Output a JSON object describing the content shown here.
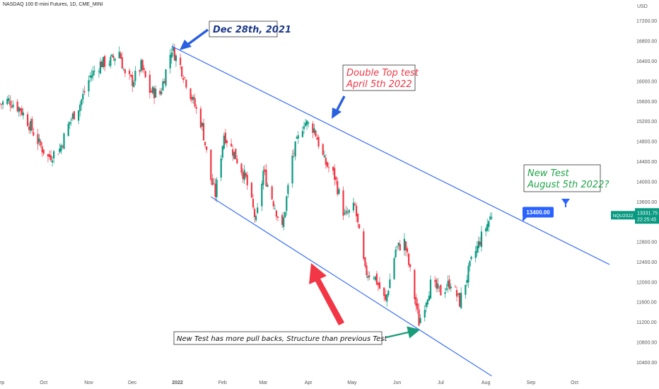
{
  "header": {
    "symbol_title": "NASDAQ 100 E-mini Futures, 1D, CME_MINI",
    "currency": "USD"
  },
  "chart_data": {
    "type": "candlestick",
    "title": "NASDAQ 100 E-mini Futures, 1D, CME_MINI",
    "y_axis": {
      "unit": "USD",
      "ylim": [
        10180,
        17450
      ],
      "ticks": [
        10400,
        10800,
        11200,
        11600,
        12000,
        12400,
        12800,
        13200,
        13600,
        14000,
        14400,
        14800,
        15200,
        15600,
        16000,
        16400,
        16800,
        17200
      ],
      "tick_labels": [
        "10400.00",
        "10800.00",
        "11200.00",
        "11600.00",
        "12000.00",
        "12400.00",
        "12800.00",
        "13200.00",
        "13600.00",
        "14000.00",
        "14400.00",
        "14800.00",
        "15200.00",
        "15600.00",
        "16000.00",
        "16400.00",
        "16800.00",
        "17200.00"
      ]
    },
    "x_axis": {
      "range": [
        "2021-09-01",
        "2022-10-25"
      ],
      "ticks": [
        {
          "label": "Sep",
          "date": "2021-09-01"
        },
        {
          "label": "Oct",
          "date": "2021-10-01"
        },
        {
          "label": "Nov",
          "date": "2021-11-01"
        },
        {
          "label": "Dec",
          "date": "2021-12-01"
        },
        {
          "label": "2022",
          "date": "2022-01-01"
        },
        {
          "label": "Feb",
          "date": "2022-02-01"
        },
        {
          "label": "Mar",
          "date": "2022-03-01"
        },
        {
          "label": "Apr",
          "date": "2022-04-01"
        },
        {
          "label": "May",
          "date": "2022-05-01"
        },
        {
          "label": "Jun",
          "date": "2022-06-01"
        },
        {
          "label": "Jul",
          "date": "2022-07-01"
        },
        {
          "label": "Aug",
          "date": "2022-08-01"
        },
        {
          "label": "Sep",
          "date": "2022-09-01"
        },
        {
          "label": "Oct",
          "date": "2022-10-01"
        }
      ]
    },
    "colors": {
      "up": "#089981",
      "down": "#f23645",
      "trendline": "#2962ff",
      "price_tag": "#089981"
    },
    "price_path": [
      {
        "date": "2021-09-01",
        "close": 15550
      },
      {
        "date": "2021-09-07",
        "close": 15620
      },
      {
        "date": "2021-09-15",
        "close": 15450
      },
      {
        "date": "2021-09-21",
        "close": 15150
      },
      {
        "date": "2021-09-28",
        "close": 14750
      },
      {
        "date": "2021-10-04",
        "close": 14480
      },
      {
        "date": "2021-10-12",
        "close": 14650
      },
      {
        "date": "2021-10-19",
        "close": 15200
      },
      {
        "date": "2021-10-26",
        "close": 15550
      },
      {
        "date": "2021-11-02",
        "close": 16100
      },
      {
        "date": "2021-11-09",
        "close": 16350
      },
      {
        "date": "2021-11-16",
        "close": 16400
      },
      {
        "date": "2021-11-22",
        "close": 16600
      },
      {
        "date": "2021-11-26",
        "close": 16100
      },
      {
        "date": "2021-12-01",
        "close": 16000
      },
      {
        "date": "2021-12-07",
        "close": 16300
      },
      {
        "date": "2021-12-13",
        "close": 15800
      },
      {
        "date": "2021-12-20",
        "close": 15750
      },
      {
        "date": "2021-12-28",
        "close": 16660
      },
      {
        "date": "2022-01-03",
        "close": 16300
      },
      {
        "date": "2022-01-10",
        "close": 15750
      },
      {
        "date": "2022-01-18",
        "close": 15100
      },
      {
        "date": "2022-01-24",
        "close": 14050
      },
      {
        "date": "2022-01-27",
        "close": 13750
      },
      {
        "date": "2022-02-02",
        "close": 14950
      },
      {
        "date": "2022-02-10",
        "close": 14500
      },
      {
        "date": "2022-02-17",
        "close": 14050
      },
      {
        "date": "2022-02-24",
        "close": 13200
      },
      {
        "date": "2022-03-01",
        "close": 14200
      },
      {
        "date": "2022-03-08",
        "close": 13600
      },
      {
        "date": "2022-03-14",
        "close": 13050
      },
      {
        "date": "2022-03-21",
        "close": 14500
      },
      {
        "date": "2022-03-29",
        "close": 15200
      },
      {
        "date": "2022-04-05",
        "close": 15050
      },
      {
        "date": "2022-04-12",
        "close": 14400
      },
      {
        "date": "2022-04-19",
        "close": 14100
      },
      {
        "date": "2022-04-26",
        "close": 13300
      },
      {
        "date": "2022-05-03",
        "close": 13500
      },
      {
        "date": "2022-05-10",
        "close": 12200
      },
      {
        "date": "2022-05-16",
        "close": 12150
      },
      {
        "date": "2022-05-24",
        "close": 11600
      },
      {
        "date": "2022-05-31",
        "close": 12650
      },
      {
        "date": "2022-06-06",
        "close": 12800
      },
      {
        "date": "2022-06-10",
        "close": 12200
      },
      {
        "date": "2022-06-16",
        "close": 11200
      },
      {
        "date": "2022-06-24",
        "close": 11950
      },
      {
        "date": "2022-07-01",
        "close": 11800
      },
      {
        "date": "2022-07-08",
        "close": 12000
      },
      {
        "date": "2022-07-14",
        "close": 11600
      },
      {
        "date": "2022-07-22",
        "close": 12400
      },
      {
        "date": "2022-07-29",
        "close": 12900
      },
      {
        "date": "2022-08-05",
        "close": 13350
      }
    ],
    "current_price": {
      "symbol": "NQU2022",
      "price": "13331.75",
      "value": 13331.75,
      "countdown": "22:25:45"
    },
    "trendlines": [
      {
        "name": "upper-channel",
        "from": {
          "date": "2021-12-28",
          "price": 16700
        },
        "to": {
          "date": "2022-10-25",
          "price": 12350
        }
      },
      {
        "name": "lower-channel",
        "from": {
          "date": "2022-01-24",
          "price": 13700
        },
        "to": {
          "date": "2022-08-05",
          "price": 10130
        }
      }
    ],
    "annotations": [
      {
        "text": [
          "Dec 28th, 2021"
        ],
        "color": "#1e3a8a",
        "arrow": "blue"
      },
      {
        "text": [
          "Double Top test",
          "April 5th 2022"
        ],
        "color": "#f23645",
        "arrow": "blue"
      },
      {
        "text": [
          "New Test",
          "August 5th 2022?"
        ],
        "color": "#22a34a"
      },
      {
        "text": [
          "New Test has more pull backs, Structure than previous Test"
        ],
        "color": "#111111",
        "arrow": "teal"
      }
    ],
    "price_label": {
      "text": "13400.00",
      "value": 13400,
      "color": "#2962ff"
    }
  }
}
